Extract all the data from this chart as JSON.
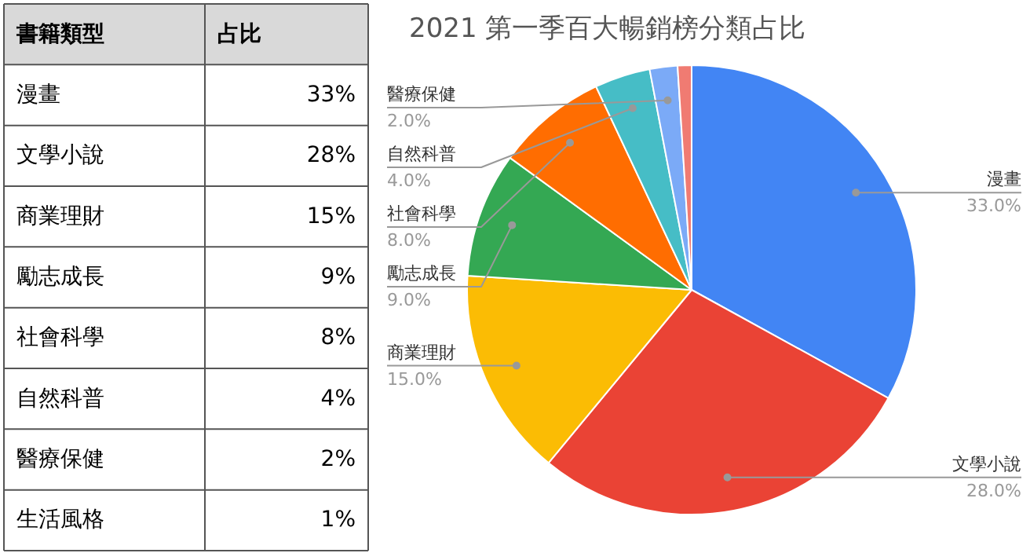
{
  "chart_data": [
    {
      "type": "other",
      "annotations": [
        "書籍類型",
        "占比",
        "漫畫",
        "33%",
        "文學小說",
        "28%",
        "商業理財",
        "15%",
        "勵志成長",
        "9%",
        "社會科學",
        "8%",
        "自然科普",
        "4%",
        "醫療保健",
        "2%",
        "生活風格",
        "1%"
      ]
    },
    {
      "type": "pie",
      "title": "2021 第一季百大暢銷榜分類占比",
      "categories": [
        "漫畫",
        "文學小說",
        "商業理財",
        "勵志成長",
        "社會科學",
        "自然科普",
        "醫療保健",
        null
      ],
      "values": [
        33,
        28,
        15,
        9,
        8,
        4,
        2,
        1
      ],
      "colors": [
        "#4285f4",
        "#ea4335",
        "#fbbc04",
        "#34a853",
        "#ff6d01",
        "#46bdc6",
        "#7baaf7",
        "#f07b72"
      ],
      "value_labels": [
        "33.0%",
        "28.0%",
        "15.0%",
        "9.0%",
        "8.0%",
        "4.0%",
        "2.0%",
        null
      ]
    }
  ]
}
